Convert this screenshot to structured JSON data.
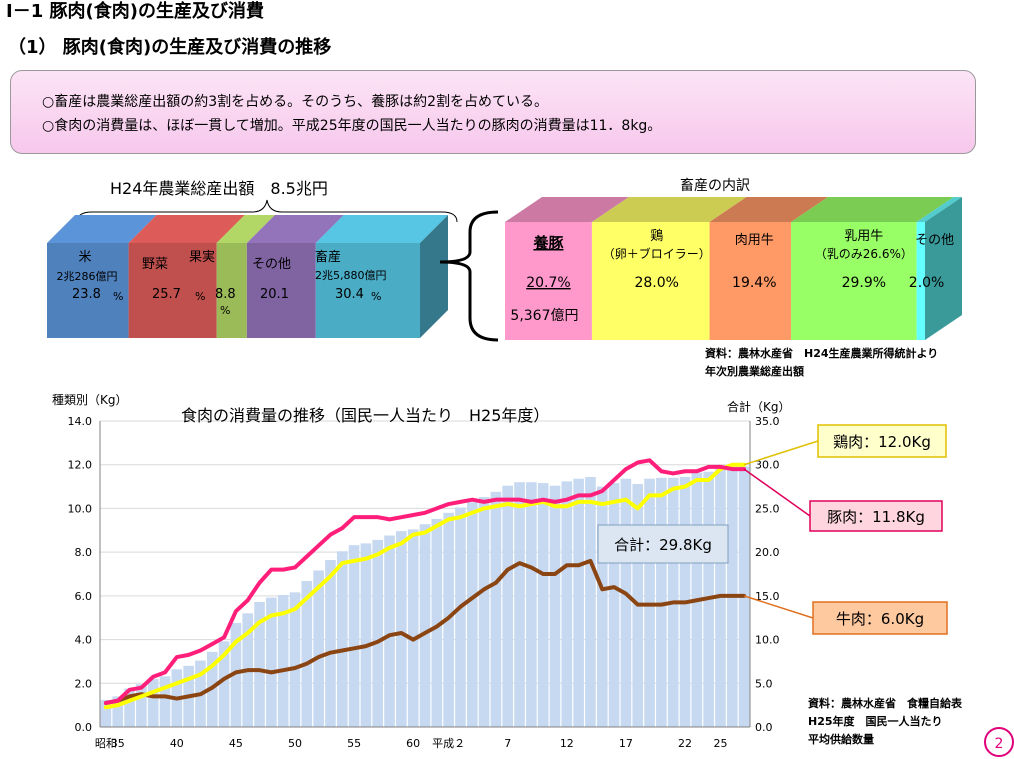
{
  "page_title": "Ⅰ－1 豚肉(食肉)の生産及び消費",
  "section_title": "（1） 豚肉(食肉)の生産及び消費の推移",
  "summary": [
    "○畜産は農業総産出額の約3割を占める。そのうち、養豚は約2割を占めている。",
    "○食肉の消費量は、ほぼ一貫して増加。平成25年度の国民一人当たりの豚肉の消費量は11．8kg。"
  ],
  "colors": {
    "rice": "#4f81bd",
    "veg": "#c0504d",
    "fruit": "#9bbb59",
    "other": "#8064a2",
    "livestock": "#4bacc6",
    "pig": "#ff99cc",
    "chicken": "#ffff66",
    "beef": "#ff9966",
    "dairy": "#99ff66",
    "misc": "#66ffff",
    "pork_line": "#ff1f7a",
    "chicken_line": "#ffff00",
    "beef_line": "#8b4513",
    "total_bar": "#c6d9f1"
  },
  "chart_data": [
    {
      "type": "bar",
      "title": "H24年農業総産出額　8.5兆円",
      "segments": [
        {
          "name": "米",
          "amount": "2兆286億円",
          "pct": 23.8,
          "pct_label": "23.8",
          "unit": "%"
        },
        {
          "name": "野菜",
          "amount": "",
          "pct": 25.7,
          "pct_label": "25.7",
          "unit": "%"
        },
        {
          "name": "果実",
          "amount": "",
          "pct": 8.8,
          "pct_label": "8.8",
          "unit": "%"
        },
        {
          "name": "その他",
          "amount": "",
          "pct": 20.1,
          "pct_label": "20.1",
          "unit": "%"
        },
        {
          "name": "畜産",
          "amount": "2兆5,880億円",
          "pct": 30.4,
          "pct_label": "30.4",
          "unit": "%"
        }
      ]
    },
    {
      "type": "bar",
      "title": "畜産の内訳",
      "segments": [
        {
          "name": "養豚",
          "sub": "",
          "pct": 20.7,
          "pct_label": "20.7%",
          "amount": "5,367億円"
        },
        {
          "name": "鶏",
          "sub": "（卵＋ブロイラー）",
          "pct": 28.0,
          "pct_label": "28.0%",
          "amount": ""
        },
        {
          "name": "肉用牛",
          "sub": "",
          "pct": 19.4,
          "pct_label": "19.4%",
          "amount": ""
        },
        {
          "name": "乳用牛",
          "sub": "（乳のみ26.6%）",
          "pct": 29.9,
          "pct_label": "29.9%",
          "amount": ""
        },
        {
          "name": "その他",
          "sub": "",
          "pct": 2.0,
          "pct_label": "2.0%",
          "amount": ""
        }
      ]
    },
    {
      "type": "line",
      "title": "食肉の消費量の推移（国民一人当たり　H25年度）",
      "ylabel": "種類別（Kg）",
      "y2label": "合計（Kg）",
      "ylim": [
        0,
        14
      ],
      "y2lim": [
        0,
        35
      ],
      "yticks": [
        "0.0",
        "2.0",
        "4.0",
        "6.0",
        "8.0",
        "10.0",
        "12.0",
        "14.0"
      ],
      "y2ticks": [
        "0.0",
        "5.0",
        "10.0",
        "15.0",
        "20.0",
        "25.0",
        "30.0",
        "35.0"
      ],
      "xtick_labels": [
        {
          "i": 0,
          "label": "昭和"
        },
        {
          "i": 1,
          "label": "35"
        },
        {
          "i": 6,
          "label": "40"
        },
        {
          "i": 11,
          "label": "45"
        },
        {
          "i": 16,
          "label": "50"
        },
        {
          "i": 21,
          "label": "55"
        },
        {
          "i": 26,
          "label": "60"
        },
        {
          "i": 29,
          "label": "平成２"
        },
        {
          "i": 34,
          "label": "7"
        },
        {
          "i": 39,
          "label": "12"
        },
        {
          "i": 44,
          "label": "17"
        },
        {
          "i": 49,
          "label": "22"
        },
        {
          "i": 52,
          "label": "25"
        }
      ],
      "x": [
        "S34",
        "S35",
        "S36",
        "S37",
        "S38",
        "S39",
        "S40",
        "S41",
        "S42",
        "S43",
        "S44",
        "S45",
        "S46",
        "S47",
        "S48",
        "S49",
        "S50",
        "S51",
        "S52",
        "S53",
        "S54",
        "S55",
        "S56",
        "S57",
        "S58",
        "S59",
        "S60",
        "S61",
        "S62",
        "S63",
        "H1",
        "H2",
        "H3",
        "H4",
        "H5",
        "H6",
        "H7",
        "H8",
        "H9",
        "H10",
        "H11",
        "H12",
        "H13",
        "H14",
        "H15",
        "H16",
        "H17",
        "H18",
        "H19",
        "H20",
        "H21",
        "H22",
        "H23",
        "H24",
        "H25"
      ],
      "series": [
        {
          "name": "豚肉",
          "label": "豚肉：11.8Kg",
          "axis": "left",
          "values": [
            1.1,
            1.2,
            1.7,
            1.8,
            2.3,
            2.5,
            3.2,
            3.3,
            3.5,
            3.8,
            4.1,
            5.3,
            5.8,
            6.6,
            7.2,
            7.2,
            7.3,
            7.8,
            8.3,
            8.8,
            9.1,
            9.6,
            9.6,
            9.6,
            9.5,
            9.6,
            9.7,
            9.8,
            10.0,
            10.2,
            10.3,
            10.4,
            10.3,
            10.4,
            10.4,
            10.4,
            10.3,
            10.4,
            10.3,
            10.4,
            10.6,
            10.6,
            10.8,
            11.3,
            11.8,
            12.1,
            12.2,
            11.7,
            11.6,
            11.7,
            11.7,
            11.9,
            11.9,
            11.8,
            11.8
          ]
        },
        {
          "name": "鶏肉",
          "label": "鶏肉：12.0Kg",
          "axis": "left",
          "values": [
            0.9,
            1.0,
            1.2,
            1.4,
            1.6,
            1.8,
            2.0,
            2.2,
            2.4,
            2.8,
            3.3,
            3.9,
            4.3,
            4.8,
            5.1,
            5.2,
            5.4,
            5.9,
            6.4,
            6.9,
            7.5,
            7.6,
            7.7,
            7.9,
            8.2,
            8.4,
            8.8,
            8.9,
            9.2,
            9.5,
            9.6,
            9.8,
            10.0,
            10.1,
            10.2,
            10.1,
            10.2,
            10.3,
            10.1,
            10.1,
            10.3,
            10.3,
            10.2,
            10.3,
            10.4,
            10.0,
            10.6,
            10.6,
            10.9,
            11.0,
            11.3,
            11.3,
            11.8,
            12.0,
            12.0
          ]
        },
        {
          "name": "牛肉",
          "label": "牛肉：6.0Kg",
          "axis": "left",
          "values": [
            1.1,
            1.2,
            1.4,
            1.5,
            1.4,
            1.4,
            1.3,
            1.4,
            1.5,
            1.8,
            2.2,
            2.5,
            2.6,
            2.6,
            2.5,
            2.6,
            2.7,
            2.9,
            3.2,
            3.4,
            3.5,
            3.6,
            3.7,
            3.9,
            4.2,
            4.3,
            4.0,
            4.3,
            4.6,
            5.0,
            5.5,
            5.9,
            6.3,
            6.6,
            7.2,
            7.5,
            7.3,
            7.0,
            7.0,
            7.4,
            7.4,
            7.6,
            6.3,
            6.4,
            6.1,
            5.6,
            5.6,
            5.6,
            5.7,
            5.7,
            5.8,
            5.9,
            6.0,
            6.0,
            6.0
          ]
        },
        {
          "name": "合計",
          "label": "合計：29.8Kg",
          "axis": "right",
          "kind": "bar",
          "values": [
            3.1,
            3.5,
            4.4,
            4.9,
            5.5,
            5.8,
            6.6,
            7.0,
            7.6,
            8.6,
            9.8,
            11.9,
            13.0,
            14.3,
            14.8,
            15.1,
            15.4,
            16.7,
            17.9,
            19.1,
            20.1,
            20.8,
            21.0,
            21.4,
            21.9,
            22.4,
            22.6,
            23.2,
            23.8,
            24.5,
            25.1,
            25.7,
            26.3,
            26.9,
            27.6,
            28.0,
            28.0,
            27.9,
            27.6,
            28.1,
            28.4,
            28.6,
            27.5,
            27.9,
            28.4,
            27.8,
            28.4,
            28.5,
            28.5,
            28.6,
            29.1,
            29.2,
            29.6,
            29.9,
            29.8
          ]
        }
      ],
      "callouts": {
        "chicken": "鶏肉：12.0Kg",
        "pork": "豚肉：11.8Kg",
        "total": "合計：29.8Kg",
        "beef": "牛肉：6.0Kg"
      }
    }
  ],
  "source1": [
    "資料：農林水産省　H24生産農業所得統計より",
    "年次別農業総産出額"
  ],
  "source2": [
    "資料：農林水産省　食糧自給表",
    "H25年度　国民一人当たり",
    "平均供給数量"
  ],
  "page_number": "2"
}
